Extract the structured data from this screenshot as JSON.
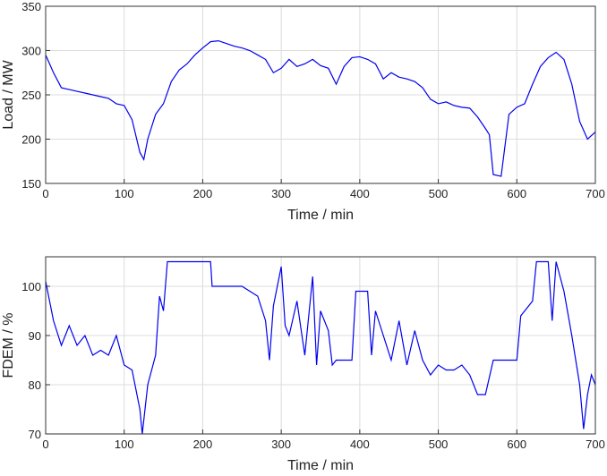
{
  "chart_data": [
    {
      "type": "line",
      "xlabel": "Time / min",
      "ylabel": "Load / MW",
      "xlim": [
        0,
        700
      ],
      "ylim": [
        150,
        350
      ],
      "xticks": [
        0,
        100,
        200,
        300,
        400,
        500,
        600,
        700
      ],
      "yticks": [
        150,
        200,
        250,
        300,
        350
      ],
      "grid": true,
      "series": [
        {
          "color": "#0000ee",
          "x": [
            0,
            10,
            20,
            30,
            40,
            50,
            60,
            70,
            80,
            90,
            100,
            110,
            120,
            125,
            130,
            140,
            150,
            160,
            170,
            180,
            190,
            200,
            210,
            220,
            230,
            240,
            250,
            260,
            270,
            280,
            290,
            300,
            310,
            320,
            330,
            340,
            350,
            360,
            370,
            380,
            390,
            400,
            410,
            420,
            430,
            440,
            450,
            460,
            470,
            480,
            490,
            500,
            510,
            520,
            530,
            540,
            550,
            560,
            565,
            570,
            580,
            590,
            600,
            610,
            620,
            630,
            640,
            650,
            660,
            670,
            680,
            690,
            700
          ],
          "values": [
            295,
            275,
            258,
            256,
            254,
            252,
            250,
            248,
            246,
            240,
            238,
            222,
            185,
            177,
            200,
            228,
            240,
            265,
            278,
            285,
            295,
            303,
            310,
            311,
            308,
            305,
            303,
            300,
            295,
            290,
            275,
            280,
            290,
            282,
            285,
            290,
            283,
            280,
            262,
            282,
            292,
            293,
            290,
            285,
            268,
            275,
            270,
            268,
            265,
            258,
            245,
            240,
            242,
            238,
            236,
            235,
            225,
            212,
            205,
            160,
            158,
            228,
            236,
            240,
            262,
            282,
            292,
            298,
            290,
            262,
            220,
            200,
            208
          ]
        }
      ]
    },
    {
      "type": "line",
      "xlabel": "Time / min",
      "ylabel": "FDEM / %",
      "xlim": [
        0,
        700
      ],
      "ylim": [
        70,
        106
      ],
      "xticks": [
        0,
        100,
        200,
        300,
        400,
        500,
        600,
        700
      ],
      "yticks": [
        70,
        80,
        90,
        100
      ],
      "grid": true,
      "series": [
        {
          "color": "#0000ee",
          "x": [
            0,
            10,
            20,
            30,
            40,
            50,
            60,
            70,
            80,
            90,
            100,
            110,
            120,
            123,
            130,
            140,
            145,
            150,
            155,
            210,
            212,
            230,
            250,
            270,
            280,
            285,
            290,
            300,
            305,
            310,
            320,
            330,
            340,
            345,
            350,
            360,
            365,
            370,
            380,
            390,
            395,
            410,
            415,
            420,
            430,
            440,
            450,
            460,
            470,
            480,
            490,
            500,
            510,
            520,
            530,
            540,
            550,
            560,
            570,
            580,
            600,
            605,
            620,
            625,
            640,
            645,
            650,
            660,
            670,
            680,
            685,
            690,
            695,
            700
          ],
          "values": [
            101,
            93,
            88,
            92,
            88,
            90,
            86,
            87,
            86,
            90,
            84,
            83,
            75,
            70,
            80,
            86,
            98,
            95,
            105,
            105,
            100,
            100,
            100,
            98,
            93,
            85,
            96,
            104,
            92,
            90,
            97,
            86,
            102,
            84,
            95,
            91,
            84,
            85,
            85,
            85,
            99,
            99,
            86,
            95,
            90,
            85,
            93,
            84,
            91,
            85,
            82,
            84,
            83,
            83,
            84,
            82,
            78,
            78,
            85,
            85,
            85,
            94,
            97,
            105,
            105,
            93,
            105,
            99,
            90,
            80,
            71,
            78,
            82,
            80
          ]
        }
      ]
    }
  ]
}
